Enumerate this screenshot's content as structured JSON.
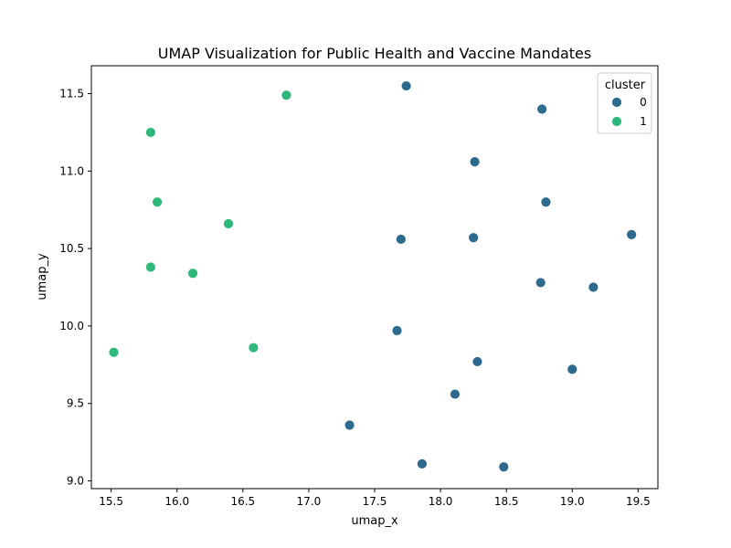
{
  "chart_data": {
    "type": "scatter",
    "title": "UMAP Visualization for Public Health and Vaccine Mandates",
    "xlabel": "umap_x",
    "ylabel": "umap_y",
    "xlim": [
      15.35,
      19.65
    ],
    "ylim": [
      8.95,
      11.68
    ],
    "xticks": [
      15.5,
      16.0,
      16.5,
      17.0,
      17.5,
      18.0,
      18.5,
      19.0,
      19.5
    ],
    "xtick_labels": [
      "15.5",
      "16.0",
      "16.5",
      "17.0",
      "17.5",
      "18.0",
      "18.5",
      "19.0",
      "19.5"
    ],
    "yticks": [
      9.0,
      9.5,
      10.0,
      10.5,
      11.0,
      11.5
    ],
    "ytick_labels": [
      "9.0",
      "9.5",
      "10.0",
      "10.5",
      "11.0",
      "11.5"
    ],
    "grid": false,
    "legend": {
      "title": "cluster",
      "placement": "top-right"
    },
    "series": [
      {
        "name": "0",
        "color": "#2e6a8e",
        "points": [
          [
            17.74,
            11.55
          ],
          [
            18.77,
            11.4
          ],
          [
            18.26,
            11.06
          ],
          [
            18.8,
            10.8
          ],
          [
            19.45,
            10.59
          ],
          [
            17.7,
            10.56
          ],
          [
            18.25,
            10.57
          ],
          [
            18.76,
            10.28
          ],
          [
            19.16,
            10.25
          ],
          [
            17.67,
            9.97
          ],
          [
            18.28,
            9.77
          ],
          [
            19.0,
            9.72
          ],
          [
            18.11,
            9.56
          ],
          [
            17.31,
            9.36
          ],
          [
            17.86,
            9.11
          ],
          [
            18.48,
            9.09
          ]
        ]
      },
      {
        "name": "1",
        "color": "#2eb87a",
        "points": [
          [
            16.83,
            11.49
          ],
          [
            15.8,
            11.25
          ],
          [
            15.85,
            10.8
          ],
          [
            16.39,
            10.66
          ],
          [
            15.8,
            10.38
          ],
          [
            16.12,
            10.34
          ],
          [
            16.58,
            9.86
          ],
          [
            15.52,
            9.83
          ]
        ]
      }
    ]
  }
}
